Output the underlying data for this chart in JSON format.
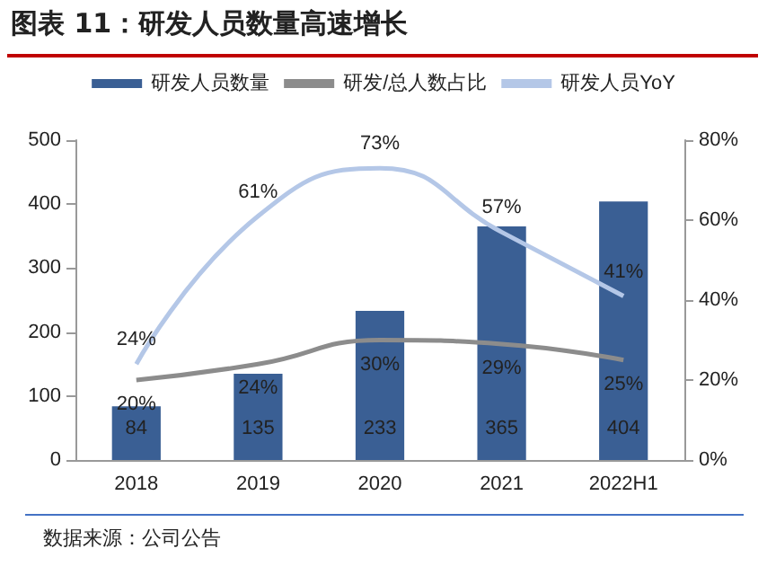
{
  "chart_data": {
    "type": "bar",
    "title": "图表 11：研发人员数量高速增长",
    "annotations": [
      "数据来源：公司公告"
    ],
    "categories": [
      "2018",
      "2019",
      "2020",
      "2021",
      "2022H1"
    ],
    "series": [
      {
        "name": "研发人员数量",
        "color": "#3a5f94",
        "values": [
          84,
          135,
          233,
          365,
          404
        ],
        "value_labels": [
          "84",
          "135",
          "233",
          "365",
          "404"
        ]
      },
      {
        "name": "研发/总人数占比",
        "type": "line",
        "axis": "y2",
        "color": "#8c8c8c",
        "values": [
          20,
          24,
          30,
          29,
          25
        ],
        "value_labels": [
          "20%",
          "24%",
          "30%",
          "29%",
          "25%"
        ]
      },
      {
        "name": "研发人员YoY",
        "type": "line",
        "axis": "y2",
        "color": "#b4c7e7",
        "values": [
          24,
          61,
          73,
          57,
          41
        ],
        "value_labels": [
          "24%",
          "61%",
          "73%",
          "57%",
          "41%"
        ]
      }
    ],
    "ylim": [
      0,
      500
    ],
    "yticks": [
      0,
      100,
      200,
      300,
      400,
      500
    ],
    "y2lim": [
      0,
      80
    ],
    "y2ticks": [
      {
        "value": 0,
        "label": "0%"
      },
      {
        "value": 20,
        "label": "20%"
      },
      {
        "value": 40,
        "label": "40%"
      },
      {
        "value": 60,
        "label": "60%"
      },
      {
        "value": 80,
        "label": "80%"
      }
    ],
    "legend": "top",
    "marker": "none",
    "line_style": "solid",
    "grid": false
  }
}
